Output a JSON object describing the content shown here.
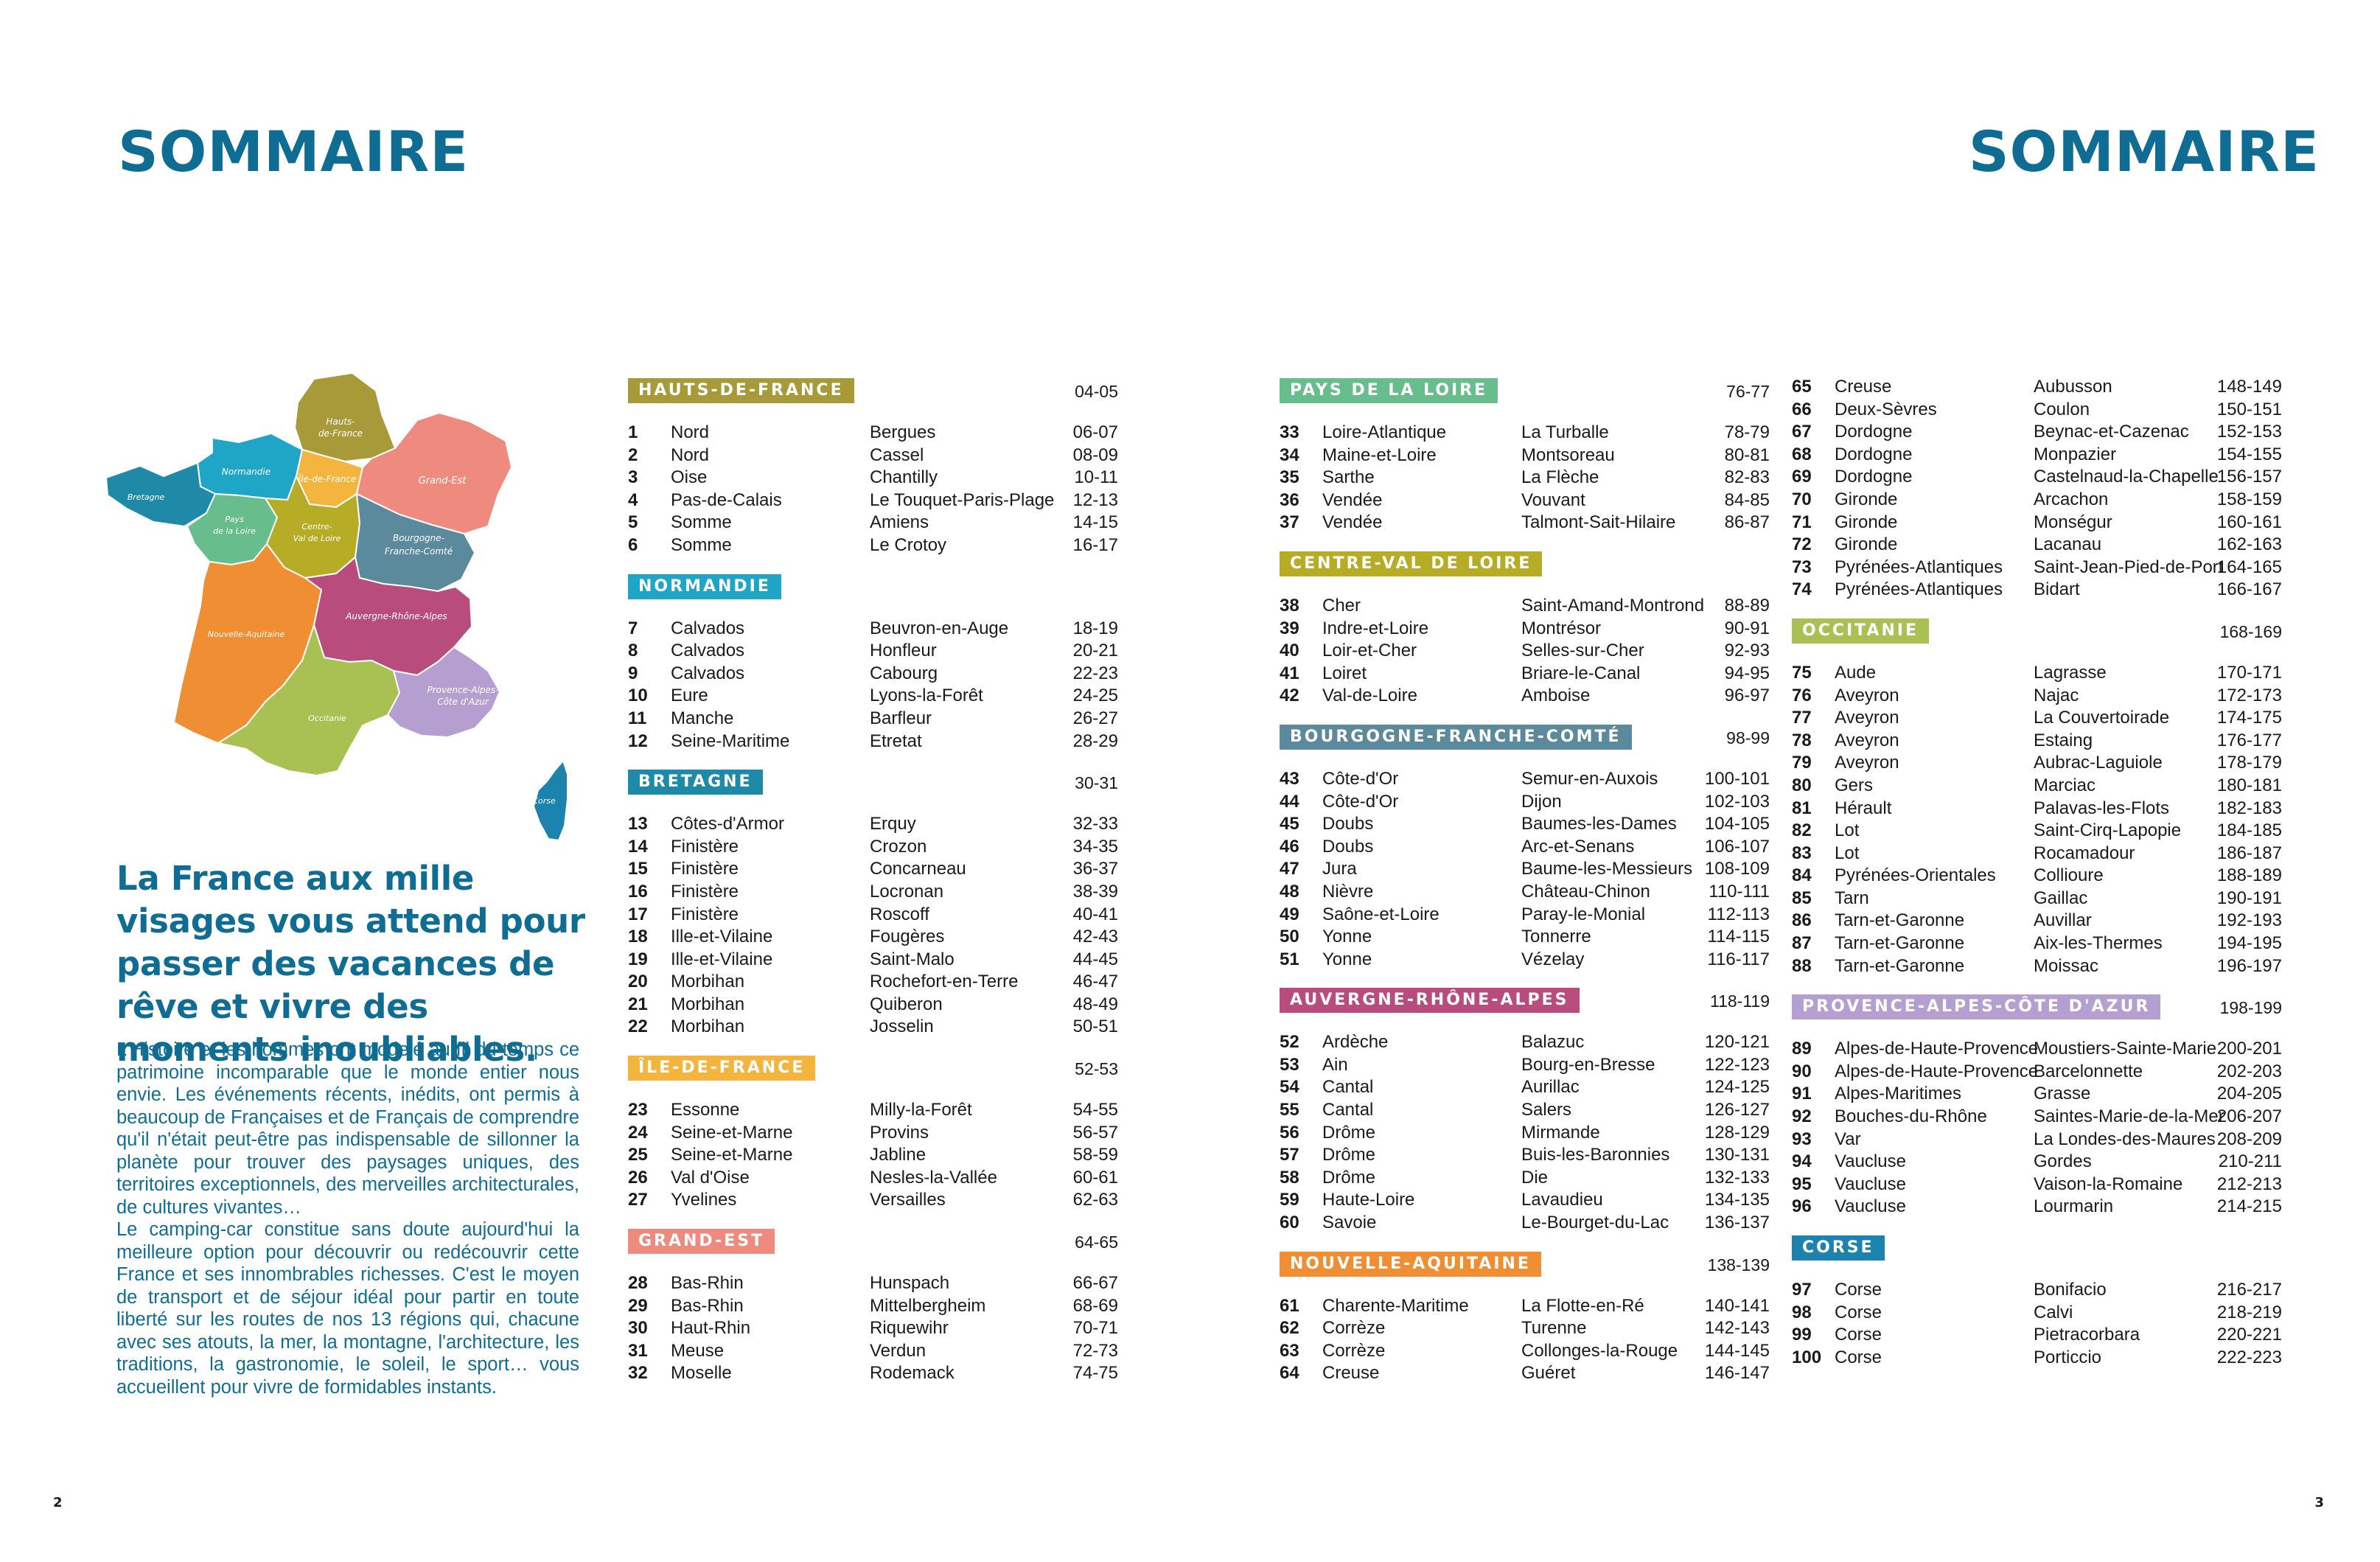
{
  "titles": {
    "left": "SOMMAIRE",
    "right": "SOMMAIRE"
  },
  "map": {
    "labels": {
      "hauts_de_france_1": "Hauts-",
      "hauts_de_france_2": "de-France",
      "normandie": "Normandie",
      "ile_de_france": "Île-de-France",
      "grand_est": "Grand-Est",
      "bretagne": "Bretagne",
      "pays_de_la_loire_1": "Pays",
      "pays_de_la_loire_2": "de la Loire",
      "centre_1": "Centre-",
      "centre_2": "Val de Loire",
      "bourgogne_1": "Bourgogne-",
      "bourgogne_2": "Franche-Comté",
      "nouvelle_aquitaine": "Nouvelle-Aquitaine",
      "auvergne": "Auvergne-Rhône-Alpes",
      "occitanie": "Occitanie",
      "paca_1": "Provence-Alpes-",
      "paca_2": "Côte d'Azur",
      "corse": "Corse"
    },
    "colors": {
      "hauts_de_france": "#a89a39",
      "normandie": "#1fa6c6",
      "ile_de_france": "#f4b53f",
      "grand_est": "#ee8a7e",
      "bretagne": "#1f8aa8",
      "pays_de_la_loire": "#67bd8c",
      "centre": "#b7ac25",
      "bourgogne": "#5a8a9c",
      "nouvelle_aquitaine": "#ef8e33",
      "auvergne": "#b84d7d",
      "occitanie": "#a9c153",
      "paca": "#b59fd0",
      "corse": "#1b83ad"
    }
  },
  "headline": "La France aux mille visages vous attend pour passer des vacances de rêve et vivre des moments inoubliables.",
  "intro": {
    "p1": "L'Histoire et les hommes ont modelé au fil du temps ce patrimoine incomparable que le monde entier nous envie. Les événements récents, inédits, ont permis à beaucoup de Françaises et de Français de comprendre qu'il n'était peut-être pas indispensable de sillonner la planète pour trouver des paysages uniques, des territoires exceptionnels, des merveilles architecturales, de cultures vivantes…",
    "p2": "Le camping-car constitue sans doute aujourd'hui la meilleure option pour découvrir ou redécouvrir cette France et ses innombrables richesses. C'est le moyen de transport et de séjour idéal pour partir en toute liberté sur les routes de nos 13 régions qui, chacune avec ses atouts, la mer, la montagne, l'architecture, les traditions, la gastronomie, le soleil, le sport… vous accueillent pour vivre de formidables instants."
  },
  "folios": {
    "left": "2",
    "right": "3"
  },
  "columns": [
    [
      {
        "name": "HAUTS-DE-FRANCE",
        "pages": "04-05",
        "color": "#a89a39",
        "entries": [
          [
            "1",
            "Nord",
            "Bergues",
            "06-07"
          ],
          [
            "2",
            "Nord",
            "Cassel",
            "08-09"
          ],
          [
            "3",
            "Oise",
            "Chantilly",
            "10-11"
          ],
          [
            "4",
            "Pas-de-Calais",
            "Le Touquet-Paris-Plage",
            "12-13"
          ],
          [
            "5",
            "Somme",
            "Amiens",
            "14-15"
          ],
          [
            "6",
            "Somme",
            "Le Crotoy",
            "16-17"
          ]
        ]
      },
      {
        "name": "NORMANDIE",
        "pages": "",
        "color": "#1fa6c6",
        "entries": [
          [
            "7",
            "Calvados",
            "Beuvron-en-Auge",
            "18-19"
          ],
          [
            "8",
            "Calvados",
            "Honfleur",
            "20-21"
          ],
          [
            "9",
            "Calvados",
            "Cabourg",
            "22-23"
          ],
          [
            "10",
            "Eure",
            "Lyons-la-Forêt",
            "24-25"
          ],
          [
            "11",
            "Manche",
            "Barfleur",
            "26-27"
          ],
          [
            "12",
            "Seine-Maritime",
            "Etretat",
            "28-29"
          ]
        ]
      },
      {
        "name": "BRETAGNE",
        "pages": "30-31",
        "color": "#1f8aa8",
        "entries": [
          [
            "13",
            "Côtes-d'Armor",
            "Erquy",
            "32-33"
          ],
          [
            "14",
            "Finistère",
            "Crozon",
            "34-35"
          ],
          [
            "15",
            "Finistère",
            "Concarneau",
            "36-37"
          ],
          [
            "16",
            "Finistère",
            "Locronan",
            "38-39"
          ],
          [
            "17",
            "Finistère",
            "Roscoff",
            "40-41"
          ],
          [
            "18",
            "Ille-et-Vilaine",
            "Fougères",
            "42-43"
          ],
          [
            "19",
            "Ille-et-Vilaine",
            "Saint-Malo",
            "44-45"
          ],
          [
            "20",
            "Morbihan",
            "Rochefort-en-Terre",
            "46-47"
          ],
          [
            "21",
            "Morbihan",
            "Quiberon",
            "48-49"
          ],
          [
            "22",
            "Morbihan",
            "Josselin",
            "50-51"
          ]
        ]
      },
      {
        "name": "ÎLE-DE-FRANCE",
        "pages": "52-53",
        "color": "#f4b53f",
        "entries": [
          [
            "23",
            "Essonne",
            "Milly-la-Forêt",
            "54-55"
          ],
          [
            "24",
            "Seine-et-Marne",
            "Provins",
            "56-57"
          ],
          [
            "25",
            "Seine-et-Marne",
            "Jabline",
            "58-59"
          ],
          [
            "26",
            "Val d'Oise",
            "Nesles-la-Vallée",
            "60-61"
          ],
          [
            "27",
            "Yvelines",
            "Versailles",
            "62-63"
          ]
        ]
      },
      {
        "name": "GRAND-EST",
        "pages": "64-65",
        "color": "#ee8a7e",
        "entries": [
          [
            "28",
            "Bas-Rhin",
            "Hunspach",
            "66-67"
          ],
          [
            "29",
            "Bas-Rhin",
            "Mittelbergheim",
            "68-69"
          ],
          [
            "30",
            "Haut-Rhin",
            "Riquewihr",
            "70-71"
          ],
          [
            "31",
            "Meuse",
            "Verdun",
            "72-73"
          ],
          [
            "32",
            "Moselle",
            "Rodemack",
            "74-75"
          ]
        ]
      }
    ],
    [
      {
        "name": "PAYS DE LA LOIRE",
        "pages": "76-77",
        "color": "#67bd8c",
        "entries": [
          [
            "33",
            "Loire-Atlantique",
            "La Turballe",
            "78-79"
          ],
          [
            "34",
            "Maine-et-Loire",
            "Montsoreau",
            "80-81"
          ],
          [
            "35",
            "Sarthe",
            "La Flèche",
            "82-83"
          ],
          [
            "36",
            "Vendée",
            "Vouvant",
            "84-85"
          ],
          [
            "37",
            "Vendée",
            "Talmont-Sait-Hilaire",
            "86-87"
          ]
        ]
      },
      {
        "name": "CENTRE-VAL DE LOIRE",
        "pages": "",
        "color": "#b7ac25",
        "entries": [
          [
            "38",
            "Cher",
            "Saint-Amand-Montrond",
            "88-89"
          ],
          [
            "39",
            "Indre-et-Loire",
            "Montrésor",
            "90-91"
          ],
          [
            "40",
            "Loir-et-Cher",
            "Selles-sur-Cher",
            "92-93"
          ],
          [
            "41",
            "Loiret",
            "Briare-le-Canal",
            "94-95"
          ],
          [
            "42",
            "Val-de-Loire",
            "Amboise",
            "96-97"
          ]
        ]
      },
      {
        "name": "BOURGOGNE-FRANCHE-COMTÉ",
        "pages": "98-99",
        "color": "#5a8a9c",
        "entries": [
          [
            "43",
            "Côte-d'Or",
            "Semur-en-Auxois",
            "100-101"
          ],
          [
            "44",
            "Côte-d'Or",
            "Dijon",
            "102-103"
          ],
          [
            "45",
            "Doubs",
            "Baumes-les-Dames",
            "104-105"
          ],
          [
            "46",
            "Doubs",
            "Arc-et-Senans",
            "106-107"
          ],
          [
            "47",
            "Jura",
            "Baume-les-Messieurs",
            "108-109"
          ],
          [
            "48",
            "Nièvre",
            "Château-Chinon",
            "110-111"
          ],
          [
            "49",
            "Saône-et-Loire",
            "Paray-le-Monial",
            "112-113"
          ],
          [
            "50",
            "Yonne",
            "Tonnerre",
            "114-115"
          ],
          [
            "51",
            "Yonne",
            "Vézelay",
            "116-117"
          ]
        ]
      },
      {
        "name": "AUVERGNE-RHÔNE-ALPES",
        "pages": "118-119",
        "color": "#b84d7d",
        "entries": [
          [
            "52",
            "Ardèche",
            "Balazuc",
            "120-121"
          ],
          [
            "53",
            "Ain",
            "Bourg-en-Bresse",
            "122-123"
          ],
          [
            "54",
            "Cantal",
            "Aurillac",
            "124-125"
          ],
          [
            "55",
            "Cantal",
            "Salers",
            "126-127"
          ],
          [
            "56",
            "Drôme",
            "Mirmande",
            "128-129"
          ],
          [
            "57",
            "Drôme",
            "Buis-les-Baronnies",
            "130-131"
          ],
          [
            "58",
            "Drôme",
            "Die",
            "132-133"
          ],
          [
            "59",
            "Haute-Loire",
            "Lavaudieu",
            "134-135"
          ],
          [
            "60",
            "Savoie",
            "Le-Bourget-du-Lac",
            "136-137"
          ]
        ]
      },
      {
        "name": "NOUVELLE-AQUITAINE",
        "pages": "138-139",
        "color": "#ef8e33",
        "entries": [
          [
            "61",
            "Charente-Maritime",
            "La Flotte-en-Ré",
            "140-141"
          ],
          [
            "62",
            "Corrèze",
            "Turenne",
            "142-143"
          ],
          [
            "63",
            "Corrèze",
            "Collonges-la-Rouge",
            "144-145"
          ],
          [
            "64",
            "Creuse",
            "Guéret",
            "146-147"
          ]
        ]
      }
    ],
    [
      {
        "name": "",
        "pages": "",
        "color": "",
        "entries": [
          [
            "65",
            "Creuse",
            "Aubusson",
            "148-149"
          ],
          [
            "66",
            "Deux-Sèvres",
            "Coulon",
            "150-151"
          ],
          [
            "67",
            "Dordogne",
            "Beynac-et-Cazenac",
            "152-153"
          ],
          [
            "68",
            "Dordogne",
            "Monpazier",
            "154-155"
          ],
          [
            "69",
            "Dordogne",
            "Castelnaud-la-Chapelle",
            "156-157"
          ],
          [
            "70",
            "Gironde",
            "Arcachon",
            "158-159"
          ],
          [
            "71",
            "Gironde",
            "Monségur",
            "160-161"
          ],
          [
            "72",
            "Gironde",
            "Lacanau",
            "162-163"
          ],
          [
            "73",
            "Pyrénées-Atlantiques",
            "Saint-Jean-Pied-de-Port",
            "164-165"
          ],
          [
            "74",
            "Pyrénées-Atlantiques",
            "Bidart",
            "166-167"
          ]
        ]
      },
      {
        "name": "OCCITANIE",
        "pages": "168-169",
        "color": "#a9c153",
        "entries": [
          [
            "75",
            "Aude",
            "Lagrasse",
            "170-171"
          ],
          [
            "76",
            "Aveyron",
            "Najac",
            "172-173"
          ],
          [
            "77",
            "Aveyron",
            "La Couvertoirade",
            "174-175"
          ],
          [
            "78",
            "Aveyron",
            "Estaing",
            "176-177"
          ],
          [
            "79",
            "Aveyron",
            "Aubrac-Laguiole",
            "178-179"
          ],
          [
            "80",
            "Gers",
            "Marciac",
            "180-181"
          ],
          [
            "81",
            "Hérault",
            "Palavas-les-Flots",
            "182-183"
          ],
          [
            "82",
            "Lot",
            "Saint-Cirq-Lapopie",
            "184-185"
          ],
          [
            "83",
            "Lot",
            "Rocamadour",
            "186-187"
          ],
          [
            "84",
            "Pyrénées-Orientales",
            "Collioure",
            "188-189"
          ],
          [
            "85",
            "Tarn",
            "Gaillac",
            "190-191"
          ],
          [
            "86",
            "Tarn-et-Garonne",
            "Auvillar",
            "192-193"
          ],
          [
            "87",
            "Tarn-et-Garonne",
            "Aix-les-Thermes",
            "194-195"
          ],
          [
            "88",
            "Tarn-et-Garonne",
            "Moissac",
            "196-197"
          ]
        ]
      },
      {
        "name": "PROVENCE-ALPES-CÔTE D'AZUR",
        "pages": "198-199",
        "color": "#b59fd0",
        "entries": [
          [
            "89",
            "Alpes-de-Haute-Provence",
            "Moustiers-Sainte-Marie",
            "200-201"
          ],
          [
            "90",
            "Alpes-de-Haute-Provence",
            "Barcelonnette",
            "202-203"
          ],
          [
            "91",
            "Alpes-Maritimes",
            "Grasse",
            "204-205"
          ],
          [
            "92",
            "Bouches-du-Rhône",
            "Saintes-Marie-de-la-Mer",
            "206-207"
          ],
          [
            "93",
            "Var",
            "La Londes-des-Maures",
            "208-209"
          ],
          [
            "94",
            "Vaucluse",
            "Gordes",
            "210-211"
          ],
          [
            "95",
            "Vaucluse",
            "Vaison-la-Romaine",
            "212-213"
          ],
          [
            "96",
            "Vaucluse",
            "Lourmarin",
            "214-215"
          ]
        ]
      },
      {
        "name": "CORSE",
        "pages": "",
        "color": "#1b83ad",
        "entries": [
          [
            "97",
            "Corse",
            "Bonifacio",
            "216-217"
          ],
          [
            "98",
            "Corse",
            "Calvi",
            "218-219"
          ],
          [
            "99",
            "Corse",
            "Pietracorbara",
            "220-221"
          ],
          [
            "100",
            "Corse",
            "Porticcio",
            "222-223"
          ]
        ]
      }
    ]
  ]
}
